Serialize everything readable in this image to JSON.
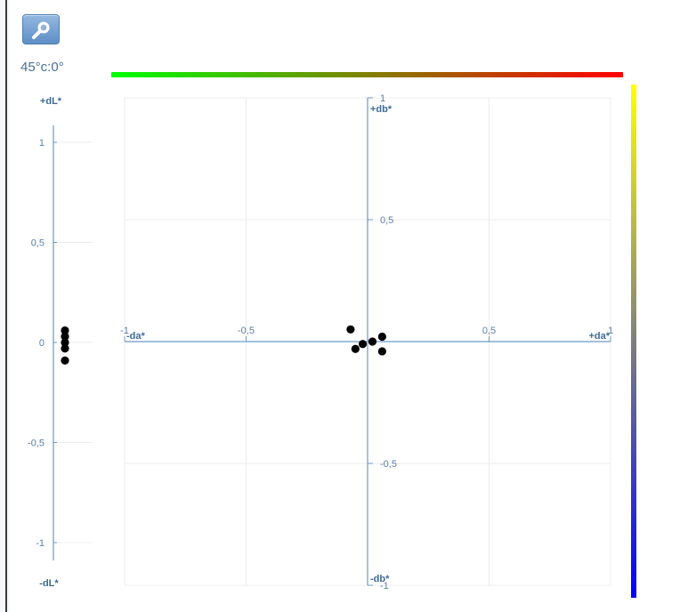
{
  "toolbar": {
    "zoom_icon": "magnifier-icon"
  },
  "geometry_label": "45°c:0°",
  "colors": {
    "axis": "#6f98c4",
    "tick_text": "#5a7ea8",
    "axis_label_text": "#3f6a99",
    "grid": "#ececec",
    "point": "#000000",
    "hue_bar": [
      "#00ff00",
      "#808000",
      "#ff0000"
    ],
    "chroma_bar": [
      "#ffff00",
      "#7f7f7f",
      "#0000ff"
    ]
  },
  "chart_data": [
    {
      "type": "scatter",
      "ylabel_top": "+dL*",
      "ylabel_bottom": "-dL*",
      "ylim": [
        -1,
        1
      ],
      "yticks": [
        "1",
        "0,5",
        "0",
        "-0,5",
        "-1"
      ],
      "grid": true,
      "points": [
        0.06,
        0.03,
        0.0,
        -0.03,
        -0.09
      ]
    },
    {
      "type": "scatter",
      "xlabel_left": "-da*",
      "xlabel_right": "+da*",
      "ylabel_top": "+db*",
      "ylabel_bottom": "-db*",
      "xlim": [
        -1,
        1
      ],
      "ylim": [
        -1,
        1
      ],
      "xticks": [
        "-1",
        "-0,5",
        "0,5",
        "1"
      ],
      "yticks": [
        "1",
        "0,5",
        "-0,5",
        "-1"
      ],
      "grid": true,
      "points": [
        {
          "x": -0.07,
          "y": 0.05
        },
        {
          "x": -0.05,
          "y": -0.03
        },
        {
          "x": -0.02,
          "y": -0.01
        },
        {
          "x": 0.02,
          "y": 0.0
        },
        {
          "x": 0.06,
          "y": 0.02
        },
        {
          "x": 0.06,
          "y": -0.04
        }
      ]
    }
  ]
}
